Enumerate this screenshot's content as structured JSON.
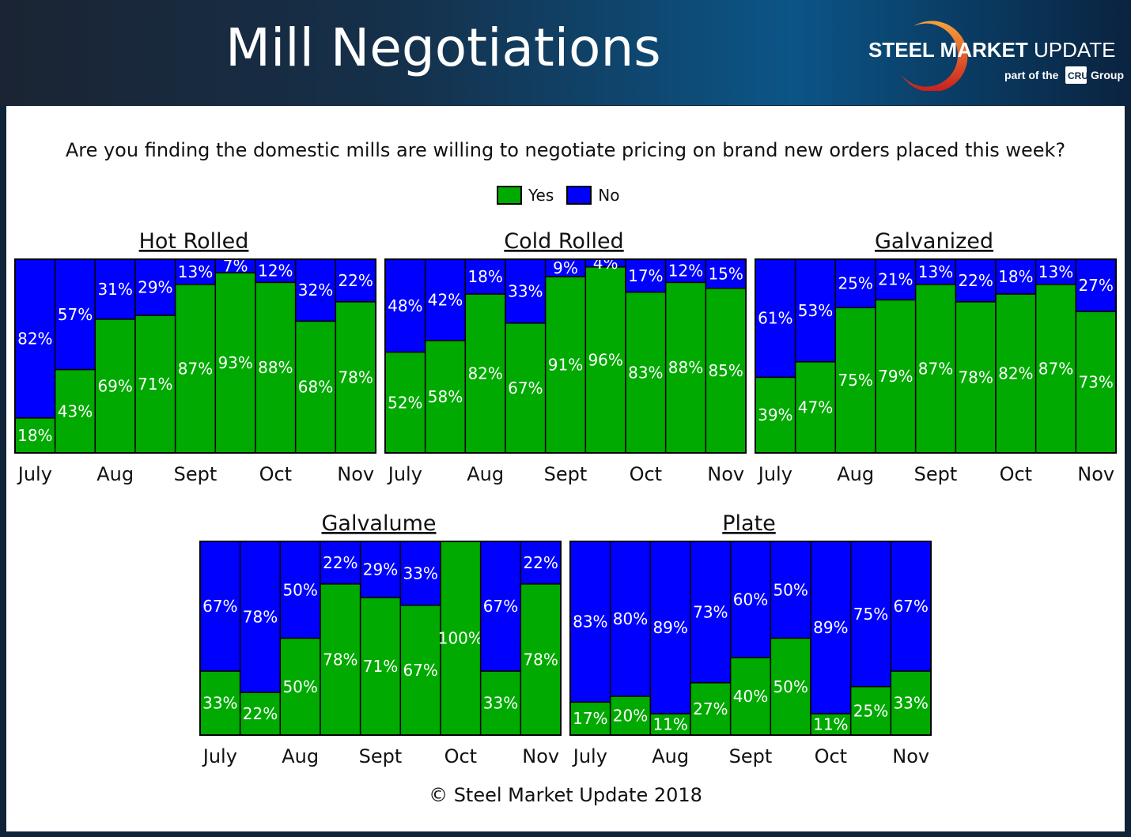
{
  "header": {
    "title": "Mill Negotiations",
    "logo": {
      "brand_bold": "STEEL MARKET",
      "brand_light": " UPDATE",
      "tagline_pre": "part of the",
      "tagline_box": "CRU",
      "tagline_post": "Group"
    }
  },
  "question": "Are you finding the domestic mills are willing to negotiate pricing on brand new orders placed this week?",
  "legend": [
    {
      "label": "Yes",
      "color": "#00aa00"
    },
    {
      "label": "No",
      "color": "#0000ff"
    }
  ],
  "footer": "© Steel Market Update 2018",
  "chart_data": [
    {
      "type": "bar",
      "stacked": "100%",
      "title": "Hot Rolled",
      "tick_labels": [
        "July",
        "",
        "Aug",
        "",
        "Sept",
        "",
        "Oct",
        "",
        "Nov"
      ],
      "series": [
        {
          "name": "Yes",
          "values": [
            18,
            43,
            69,
            71,
            87,
            93,
            88,
            68,
            78
          ]
        },
        {
          "name": "No",
          "values": [
            82,
            57,
            31,
            29,
            13,
            7,
            12,
            32,
            22
          ]
        }
      ]
    },
    {
      "type": "bar",
      "stacked": "100%",
      "title": "Cold Rolled",
      "tick_labels": [
        "July",
        "",
        "Aug",
        "",
        "Sept",
        "",
        "Oct",
        "",
        "Nov"
      ],
      "series": [
        {
          "name": "Yes",
          "values": [
            52,
            58,
            82,
            67,
            91,
            96,
            83,
            88,
            85
          ]
        },
        {
          "name": "No",
          "values": [
            48,
            42,
            18,
            33,
            9,
            4,
            17,
            12,
            15
          ]
        }
      ]
    },
    {
      "type": "bar",
      "stacked": "100%",
      "title": "Galvanized",
      "tick_labels": [
        "July",
        "",
        "Aug",
        "",
        "Sept",
        "",
        "Oct",
        "",
        "Nov"
      ],
      "series": [
        {
          "name": "Yes",
          "values": [
            39,
            47,
            75,
            79,
            87,
            78,
            82,
            87,
            73
          ]
        },
        {
          "name": "No",
          "values": [
            61,
            53,
            25,
            21,
            13,
            22,
            18,
            13,
            27
          ]
        }
      ]
    },
    {
      "type": "bar",
      "stacked": "100%",
      "title": "Galvalume",
      "tick_labels": [
        "July",
        "",
        "Aug",
        "",
        "Sept",
        "",
        "Oct",
        "",
        "Nov"
      ],
      "series": [
        {
          "name": "Yes",
          "values": [
            33,
            22,
            50,
            78,
            71,
            67,
            100,
            33,
            78
          ]
        },
        {
          "name": "No",
          "values": [
            67,
            78,
            50,
            22,
            29,
            33,
            0,
            67,
            22
          ]
        }
      ]
    },
    {
      "type": "bar",
      "stacked": "100%",
      "title": "Plate",
      "tick_labels": [
        "July",
        "",
        "Aug",
        "",
        "Sept",
        "",
        "Oct",
        "",
        "Nov"
      ],
      "series": [
        {
          "name": "Yes",
          "values": [
            17,
            20,
            11,
            27,
            40,
            50,
            11,
            25,
            33
          ]
        },
        {
          "name": "No",
          "values": [
            83,
            80,
            89,
            73,
            60,
            50,
            89,
            75,
            67
          ]
        }
      ]
    }
  ]
}
